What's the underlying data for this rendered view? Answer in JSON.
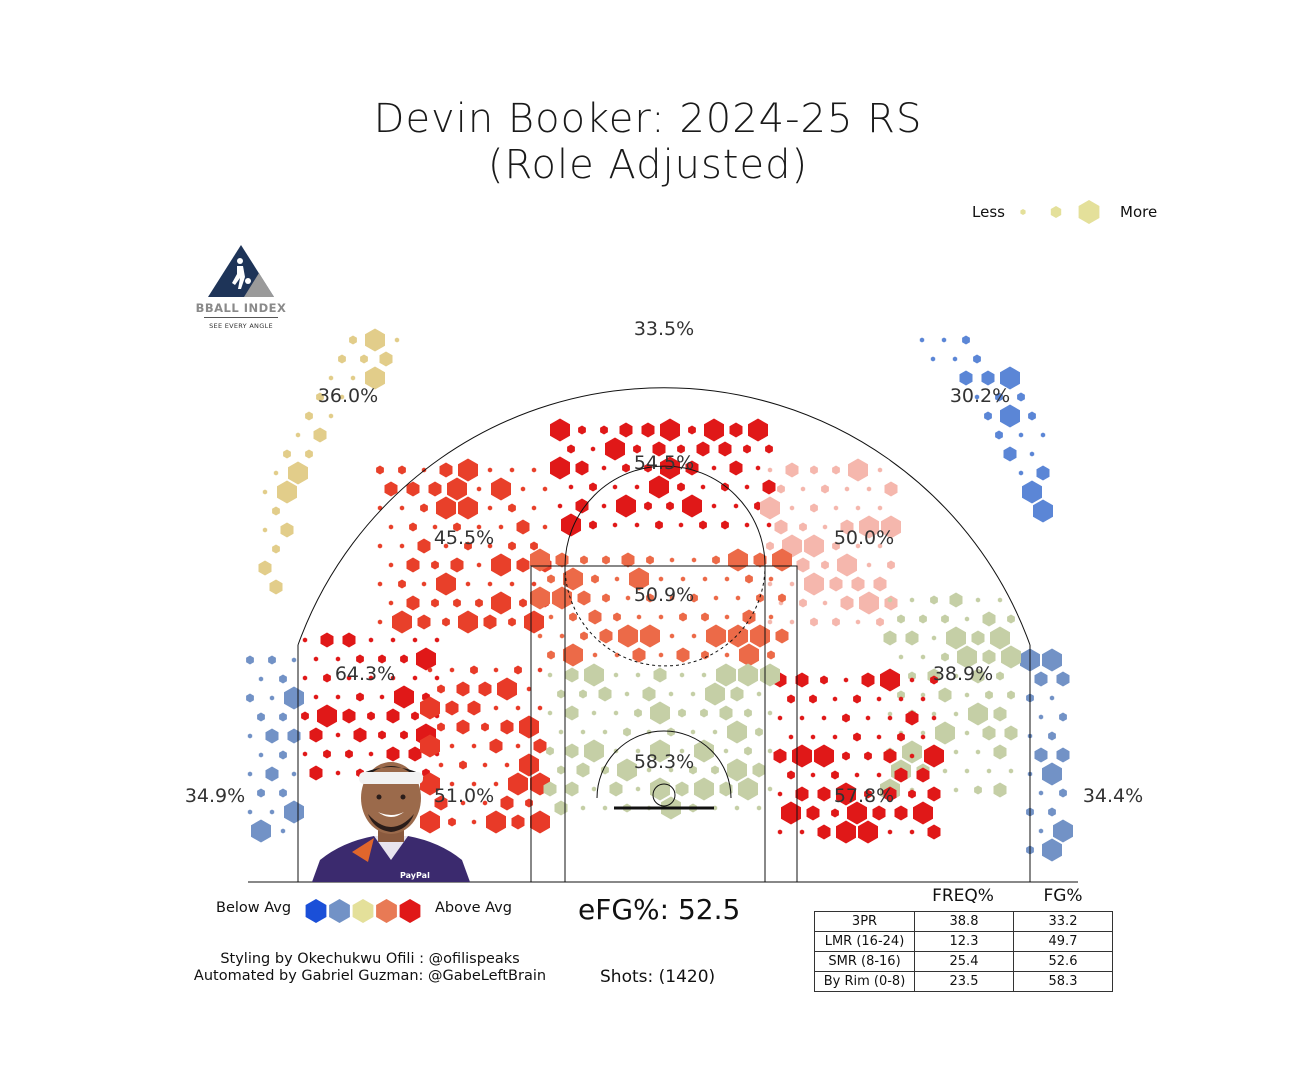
{
  "title": {
    "line1": "Devin Booker: 2024-25 RS",
    "line2": "(Role Adjusted)"
  },
  "size_legend": {
    "less": "Less",
    "more": "More"
  },
  "logo": {
    "name": "BBALL INDEX",
    "tagline": "SEE EVERY ANGLE"
  },
  "color_legend": {
    "below": "Below Avg",
    "above": "Above Avg",
    "colors": [
      "#1a4fd8",
      "#7292c6",
      "#e4e09a",
      "#e87a55",
      "#e01818"
    ]
  },
  "credits": {
    "styling": "Styling by Okechukwu Ofili : @ofilispeaks",
    "automation": "Automated by Gabriel Guzman: @GabeLeftBrain"
  },
  "summary": {
    "efg": "eFG%: 52.5",
    "shots": "Shots: (1420)"
  },
  "stats_table": {
    "headers": [
      "FREQ%",
      "FG%"
    ],
    "rows": [
      {
        "label": "3PR",
        "freq": "38.8",
        "fg": "33.2"
      },
      {
        "label": "LMR (16-24)",
        "freq": "12.3",
        "fg": "49.7"
      },
      {
        "label": "SMR (8-16)",
        "freq": "25.4",
        "fg": "52.6"
      },
      {
        "label": "By Rim (0-8)",
        "freq": "23.5",
        "fg": "58.3"
      }
    ]
  },
  "chart_data": {
    "type": "heatmap",
    "subtype": "hexbin shot chart",
    "title": "Devin Booker: 2024-25 RS (Role Adjusted)",
    "hex_size_encodes": "shot frequency (Less → More)",
    "hex_color_encodes": "efficiency vs league average (Below Avg → Above Avg)",
    "zones": [
      {
        "zone": "left-corner-3",
        "fg_pct": "34.9%",
        "color": "#7292c6"
      },
      {
        "zone": "left-wing-3",
        "fg_pct": "36.0%",
        "color": "#e2cd8a"
      },
      {
        "zone": "top-of-key-3",
        "fg_pct": "33.5%",
        "color": "#c5cfa6"
      },
      {
        "zone": "right-wing-3",
        "fg_pct": "30.2%",
        "color": "#5b86d6"
      },
      {
        "zone": "right-corner-3",
        "fg_pct": "34.4%",
        "color": "#7292c6"
      },
      {
        "zone": "left-elbow-midrange",
        "fg_pct": "45.5%",
        "color": "#e8402a"
      },
      {
        "zone": "top-midrange",
        "fg_pct": "54.5%",
        "color": "#e01818"
      },
      {
        "zone": "right-elbow-midrange",
        "fg_pct": "50.0%",
        "color": "#f5b7ad"
      },
      {
        "zone": "free-throw-area",
        "fg_pct": "50.9%",
        "color": "#ec6a48"
      },
      {
        "zone": "left-baseline-long-mid",
        "fg_pct": "64.3%",
        "color": "#e01818"
      },
      {
        "zone": "right-baseline-long-mid",
        "fg_pct": "38.9%",
        "color": "#c5cfa6"
      },
      {
        "zone": "left-baseline-short-mid",
        "fg_pct": "51.0%",
        "color": "#e83a28"
      },
      {
        "zone": "right-baseline-short-mid",
        "fg_pct": "57.8%",
        "color": "#e01818"
      },
      {
        "zone": "restricted-area",
        "fg_pct": "58.3%",
        "color": "#c5cfa6"
      }
    ]
  }
}
